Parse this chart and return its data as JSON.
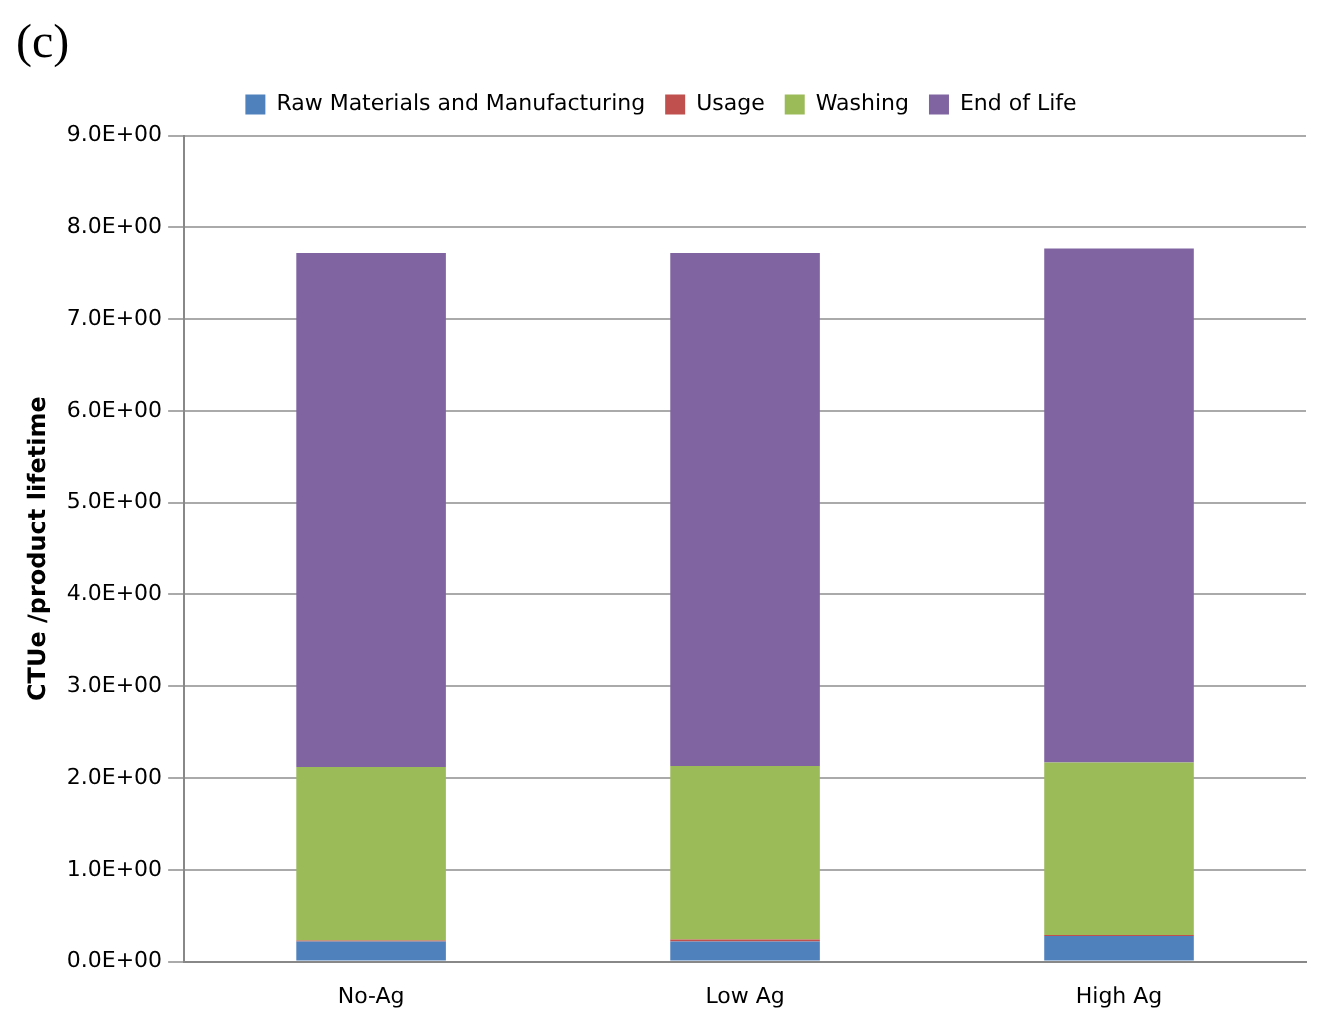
{
  "chart_data": {
    "type": "bar",
    "title": "(c)",
    "ylabel": "CTUe /product lifetime",
    "categories": [
      "No-Ag",
      "Low Ag",
      "High Ag"
    ],
    "series": [
      {
        "name": "Raw Materials and Manufacturing",
        "color": "#4f81bd",
        "values": [
          0.22,
          0.22,
          0.28
        ]
      },
      {
        "name": "Usage",
        "color": "#c0504d",
        "values": [
          0.01,
          0.02,
          0.01
        ]
      },
      {
        "name": "Washing",
        "color": "#9bbb59",
        "values": [
          1.89,
          1.89,
          1.88
        ]
      },
      {
        "name": "End of Life",
        "color": "#8064a2",
        "values": [
          5.6,
          5.59,
          5.6
        ]
      }
    ],
    "stacked": true,
    "ylim": [
      0,
      9
    ],
    "yticks": [
      {
        "value": 0,
        "label": "0.0E+00"
      },
      {
        "value": 1,
        "label": "1.0E+00"
      },
      {
        "value": 2,
        "label": "2.0E+00"
      },
      {
        "value": 3,
        "label": "3.0E+00"
      },
      {
        "value": 4,
        "label": "4.0E+00"
      },
      {
        "value": 5,
        "label": "5.0E+00"
      },
      {
        "value": 6,
        "label": "6.0E+00"
      },
      {
        "value": 7,
        "label": "7.0E+00"
      },
      {
        "value": 8,
        "label": "8.0E+00"
      },
      {
        "value": 9,
        "label": "9.0E+00"
      }
    ],
    "grid": "y",
    "legend": "top"
  }
}
